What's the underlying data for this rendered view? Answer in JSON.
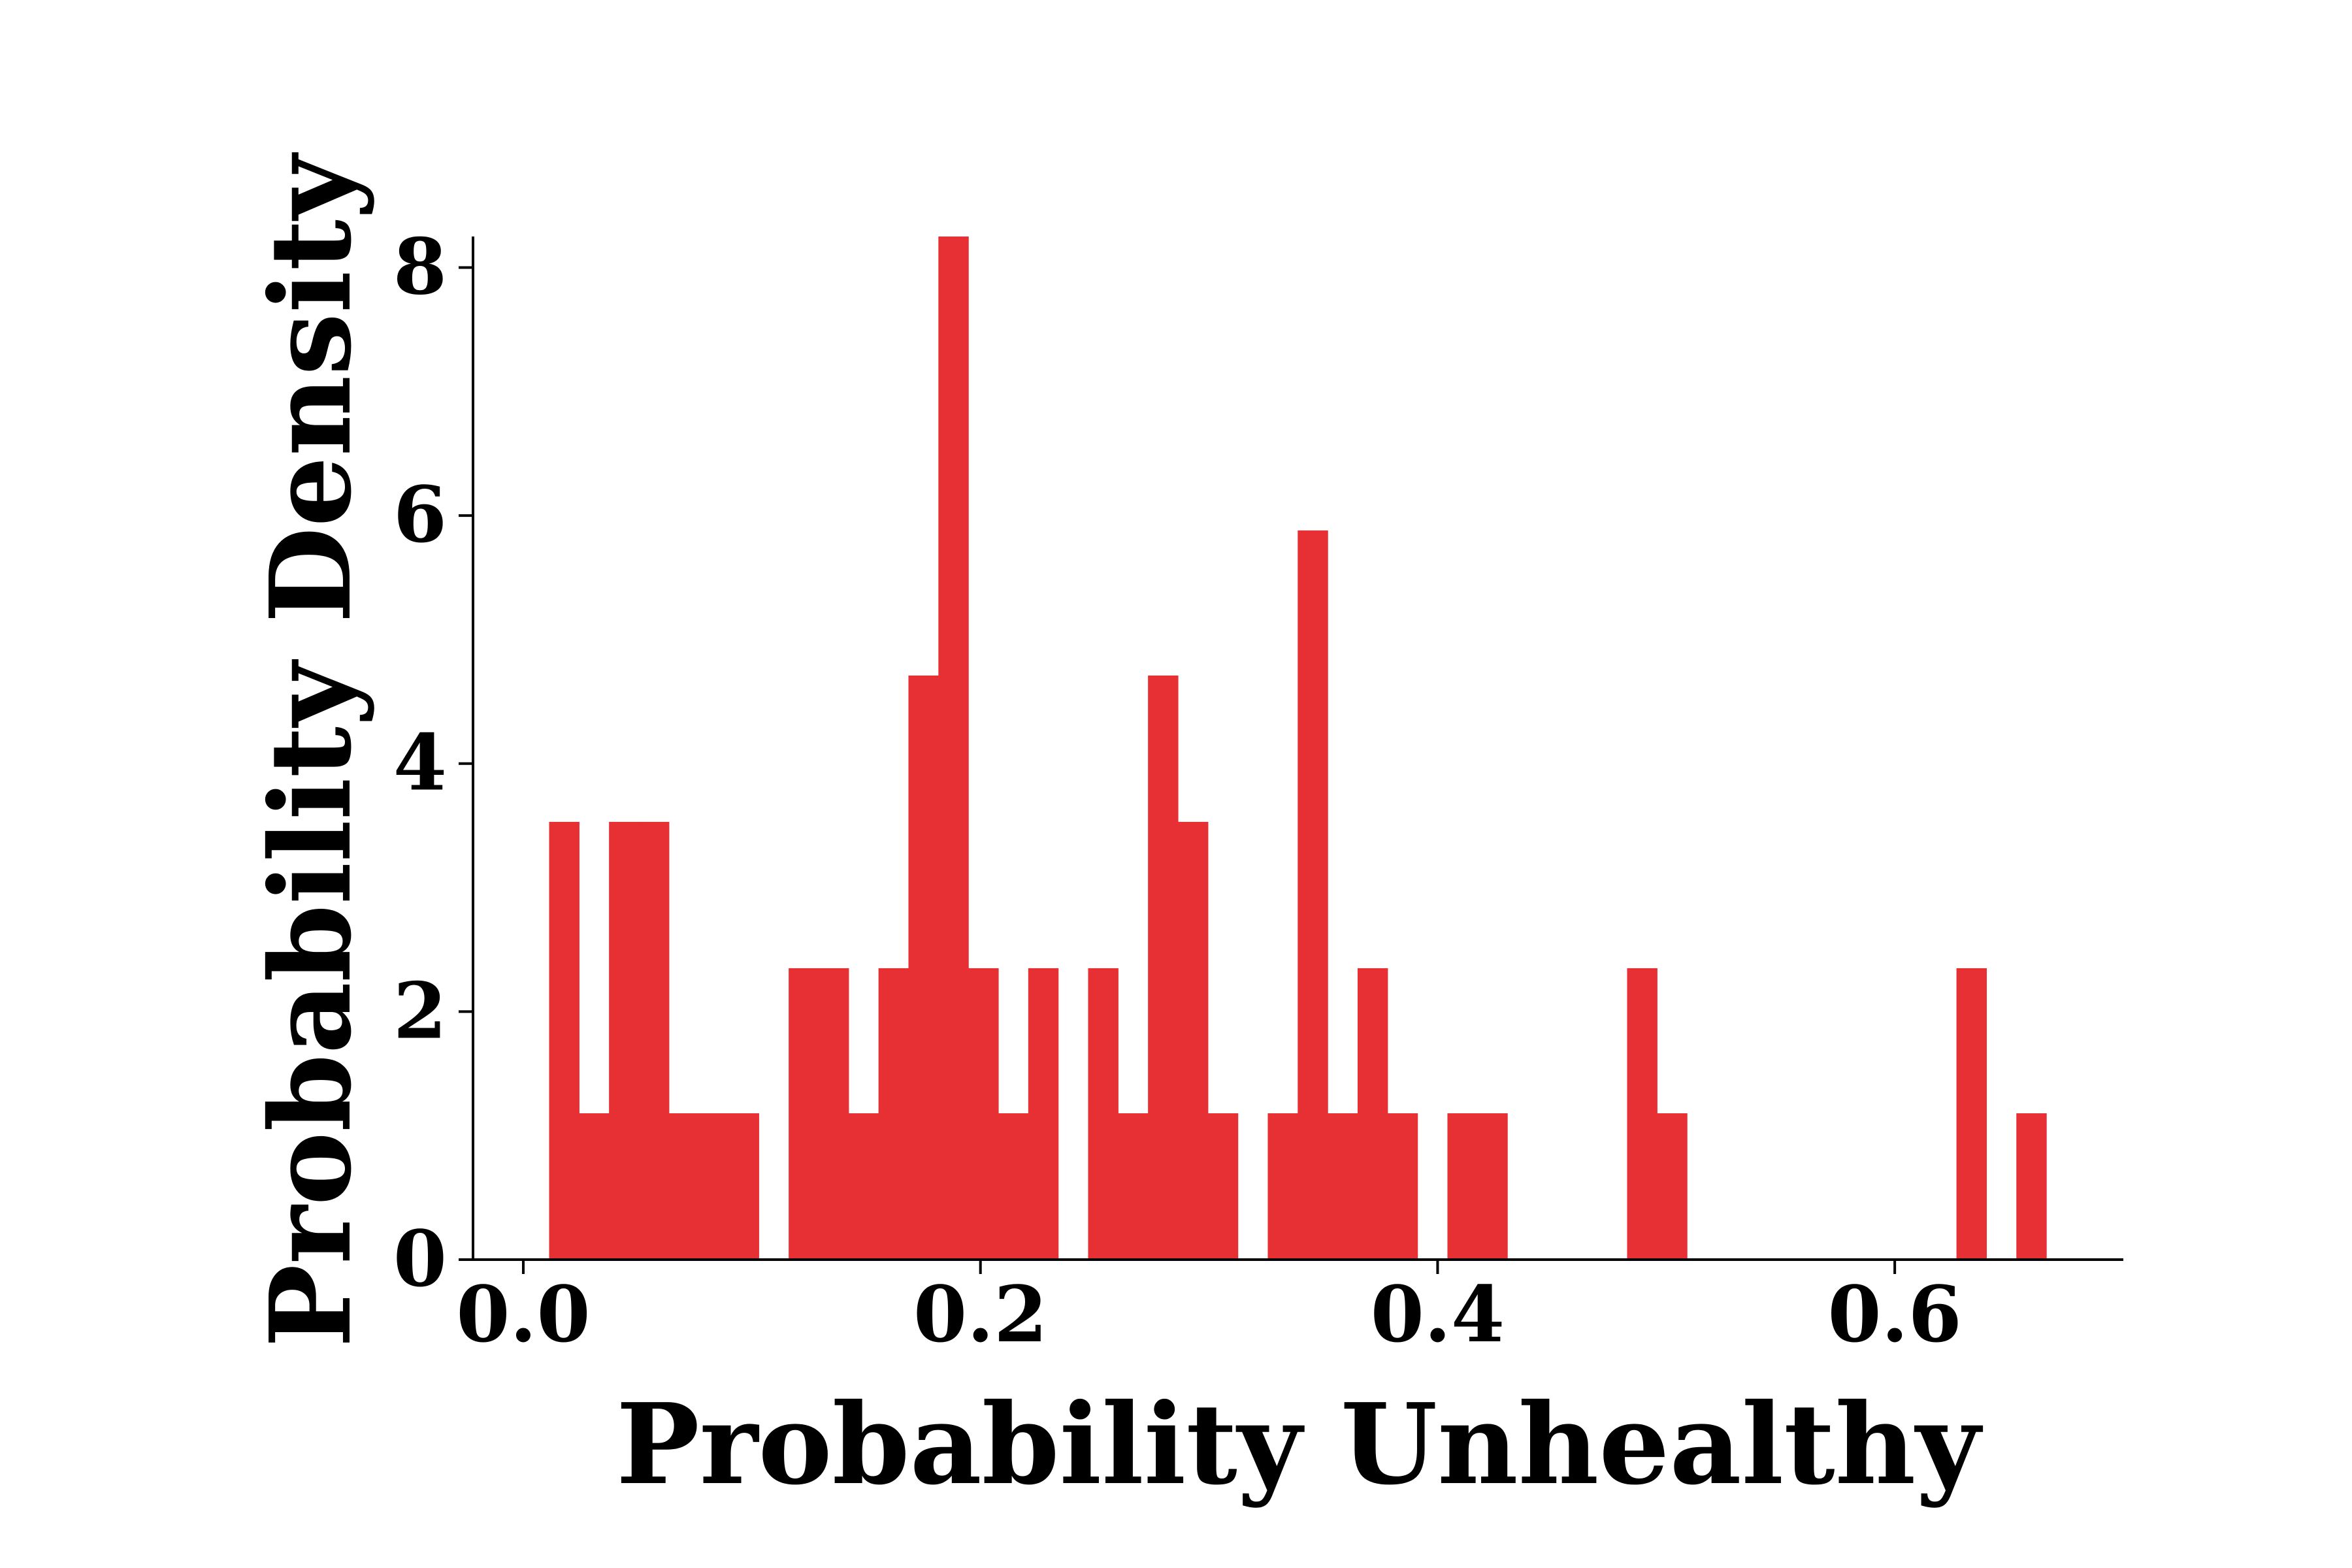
{
  "chart_data": {
    "type": "bar",
    "title": "",
    "xlabel": "Probability Unhealthy",
    "ylabel": "Probability Density",
    "xlim": [
      -0.022,
      0.7
    ],
    "ylim": [
      0,
      8.25
    ],
    "grid": false,
    "legend": "none",
    "bar_color": "#e63033",
    "bin_width": 0.0131,
    "x_ticks": [
      {
        "value": 0.0,
        "label": "0.0"
      },
      {
        "value": 0.2,
        "label": "0.2"
      },
      {
        "value": 0.4,
        "label": "0.4"
      },
      {
        "value": 0.6,
        "label": "0.6"
      }
    ],
    "y_ticks": [
      {
        "value": 0,
        "label": "0"
      },
      {
        "value": 2,
        "label": "2"
      },
      {
        "value": 4,
        "label": "4"
      },
      {
        "value": 6,
        "label": "6"
      },
      {
        "value": 8,
        "label": "8"
      }
    ],
    "bins": [
      {
        "x0": 0.0113,
        "height": 3.53
      },
      {
        "x0": 0.0244,
        "height": 1.18
      },
      {
        "x0": 0.0375,
        "height": 3.53
      },
      {
        "x0": 0.0506,
        "height": 3.53
      },
      {
        "x0": 0.0637,
        "height": 1.18
      },
      {
        "x0": 0.0768,
        "height": 1.18
      },
      {
        "x0": 0.0899,
        "height": 1.18
      },
      {
        "x0": 0.1161,
        "height": 2.35
      },
      {
        "x0": 0.1292,
        "height": 2.35
      },
      {
        "x0": 0.1423,
        "height": 1.18
      },
      {
        "x0": 0.1554,
        "height": 2.35
      },
      {
        "x0": 0.1685,
        "height": 4.71
      },
      {
        "x0": 0.1816,
        "height": 8.25
      },
      {
        "x0": 0.1947,
        "height": 2.35
      },
      {
        "x0": 0.2078,
        "height": 1.18
      },
      {
        "x0": 0.2209,
        "height": 2.35
      },
      {
        "x0": 0.2471,
        "height": 2.35
      },
      {
        "x0": 0.2602,
        "height": 1.18
      },
      {
        "x0": 0.2733,
        "height": 4.71
      },
      {
        "x0": 0.2864,
        "height": 3.53
      },
      {
        "x0": 0.2995,
        "height": 1.18
      },
      {
        "x0": 0.3257,
        "height": 1.18
      },
      {
        "x0": 0.3388,
        "height": 5.88
      },
      {
        "x0": 0.3519,
        "height": 1.18
      },
      {
        "x0": 0.365,
        "height": 2.35
      },
      {
        "x0": 0.3781,
        "height": 1.18
      },
      {
        "x0": 0.4043,
        "height": 1.18
      },
      {
        "x0": 0.4174,
        "height": 1.18
      },
      {
        "x0": 0.4829,
        "height": 2.35
      },
      {
        "x0": 0.496,
        "height": 1.18
      },
      {
        "x0": 0.627,
        "height": 2.35
      },
      {
        "x0": 0.6532,
        "height": 1.18
      }
    ]
  }
}
